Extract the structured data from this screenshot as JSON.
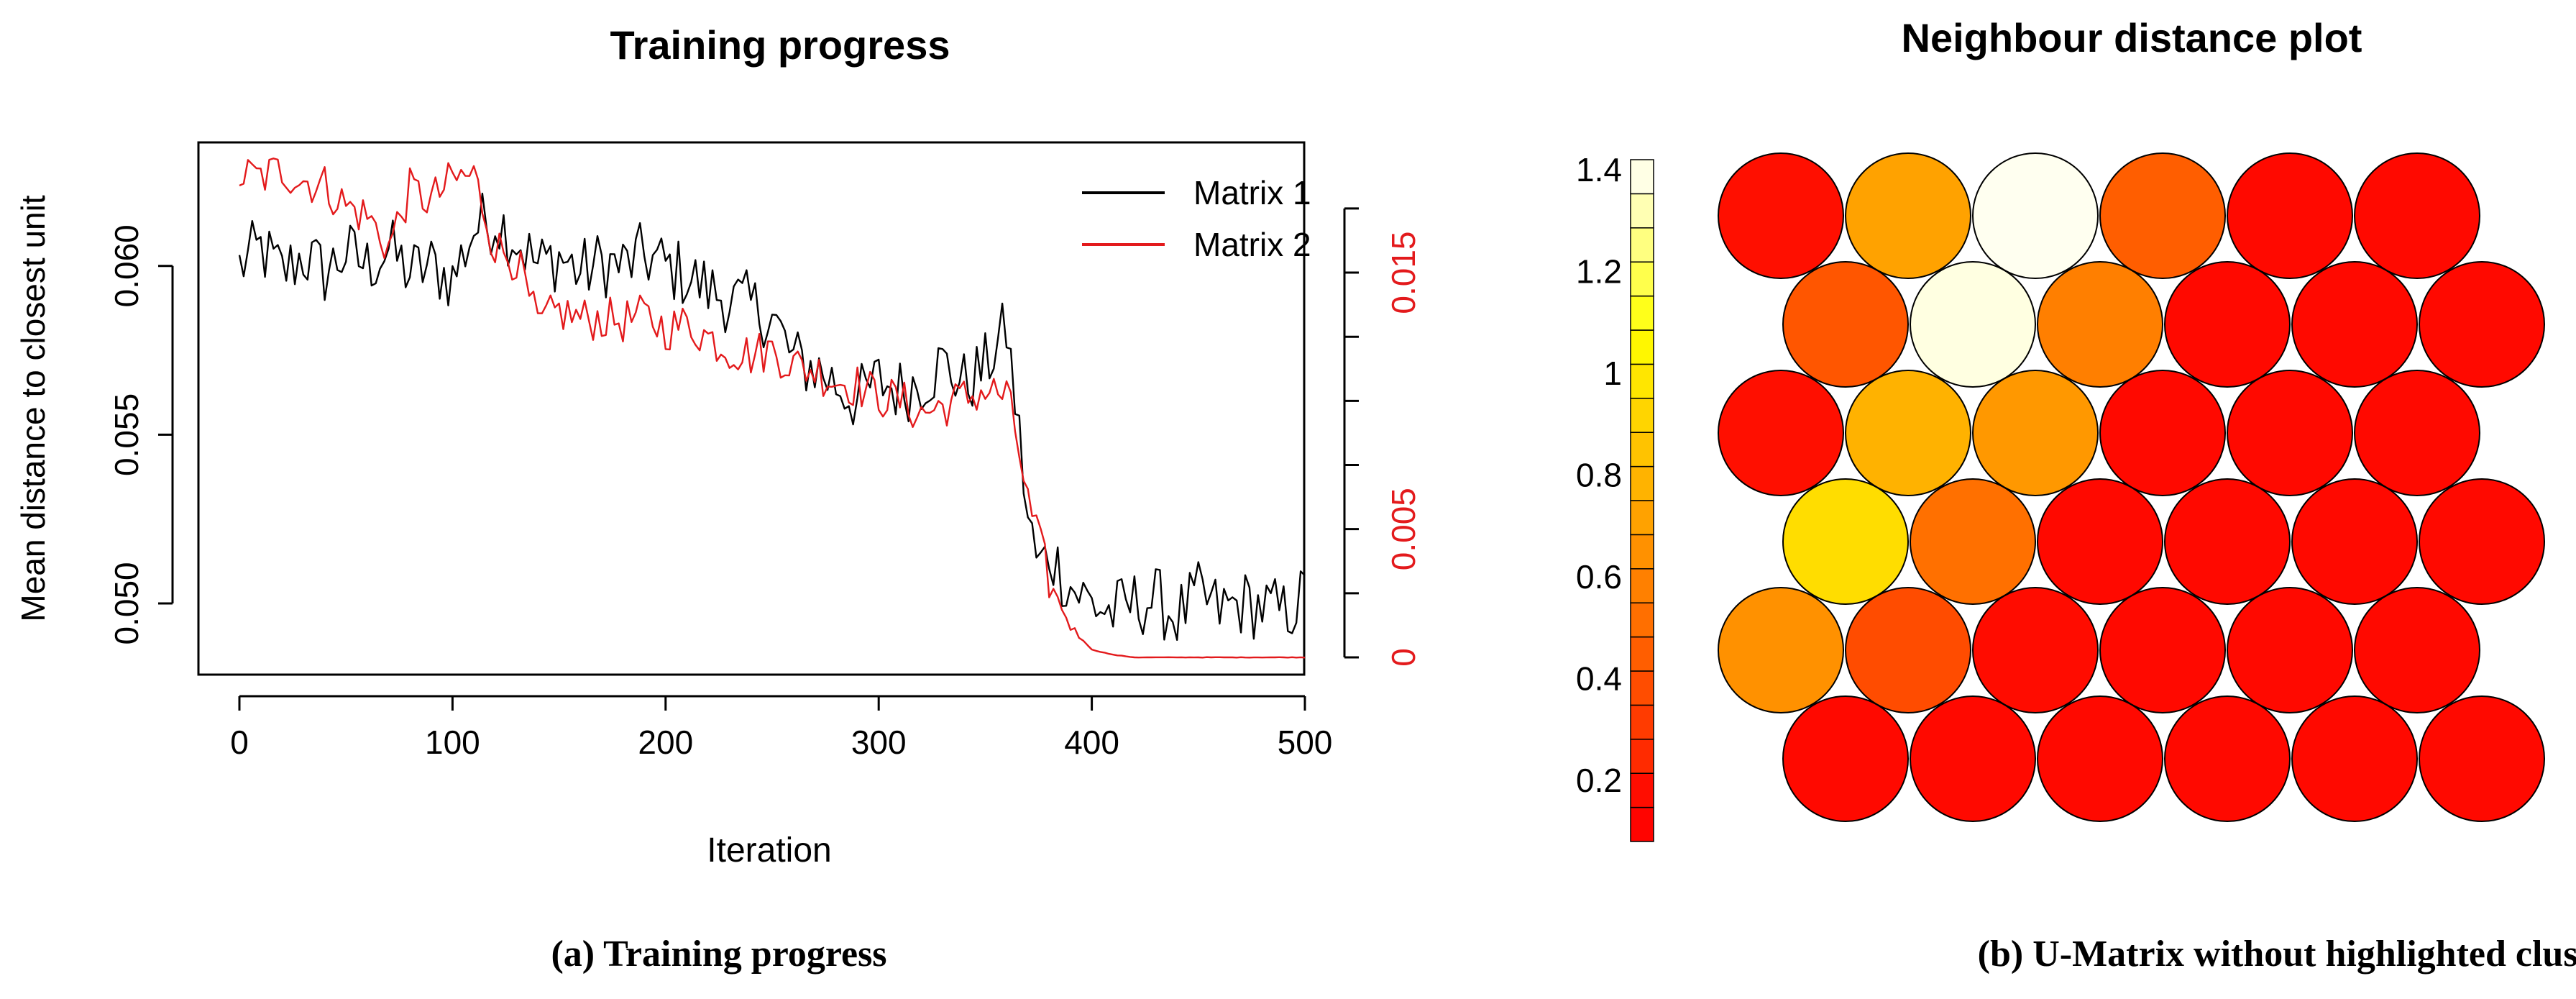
{
  "panels": {
    "a": {
      "caption": "(a) Training progress"
    },
    "b": {
      "caption": "(b) U-Matrix without highlighted clusters"
    }
  },
  "colors": {
    "matrix1": "#000000",
    "matrix2": "#e31a1c",
    "right_axis": "#e31a1c"
  },
  "chart_data": [
    {
      "type": "line",
      "title": "Training progress",
      "xlabel": "Iteration",
      "ylabel": "Mean distance to closest unit",
      "xlim": [
        0,
        500
      ],
      "x_ticks": [
        0,
        100,
        200,
        300,
        400,
        500
      ],
      "ylim": [
        0.0484,
        0.0633
      ],
      "y_ticks": [
        0.05,
        0.055,
        0.06
      ],
      "y_tick_labels": [
        "0.050",
        "0.055",
        "0.060"
      ],
      "y2lim": [
        0,
        0.0196
      ],
      "y2_ticks": [
        0,
        0.0025,
        0.005,
        0.0075,
        0.01,
        0.0125,
        0.015,
        0.0175
      ],
      "y2_tick_labels": [
        "0",
        "",
        "0.005",
        "",
        "",
        "",
        "0.015",
        ""
      ],
      "legend_position": "top-right",
      "series": [
        {
          "name": "Matrix 1",
          "axis": "left",
          "x": [
            0,
            10,
            20,
            30,
            40,
            50,
            60,
            70,
            80,
            90,
            100,
            110,
            120,
            130,
            140,
            150,
            160,
            170,
            180,
            190,
            200,
            210,
            220,
            230,
            240,
            250,
            260,
            270,
            280,
            290,
            300,
            310,
            320,
            330,
            340,
            350,
            355,
            360,
            365,
            370,
            375,
            380,
            390,
            400,
            410,
            420,
            430,
            440,
            450,
            460,
            470,
            480,
            490,
            500
          ],
          "values": [
            0.06,
            0.0605,
            0.0598,
            0.0603,
            0.0598,
            0.0604,
            0.06,
            0.0605,
            0.0598,
            0.06,
            0.0596,
            0.0611,
            0.0614,
            0.0608,
            0.06,
            0.0603,
            0.0598,
            0.0601,
            0.06,
            0.0603,
            0.06,
            0.0597,
            0.0593,
            0.059,
            0.0588,
            0.0585,
            0.0572,
            0.057,
            0.0565,
            0.056,
            0.0566,
            0.0563,
            0.0566,
            0.0571,
            0.0565,
            0.057,
            0.0576,
            0.0581,
            0.0555,
            0.0525,
            0.051,
            0.0515,
            0.0505,
            0.05,
            0.0497,
            0.05,
            0.0501,
            0.0496,
            0.0502,
            0.0498,
            0.05,
            0.0499,
            0.0497,
            0.0502
          ]
        },
        {
          "name": "Matrix 2",
          "axis": "right",
          "x": [
            0,
            10,
            20,
            30,
            40,
            50,
            60,
            70,
            80,
            90,
            100,
            110,
            120,
            130,
            140,
            150,
            160,
            170,
            180,
            190,
            200,
            210,
            220,
            230,
            240,
            250,
            260,
            270,
            280,
            290,
            300,
            310,
            320,
            330,
            340,
            350,
            360,
            365,
            370,
            375,
            380,
            390,
            400,
            410,
            420,
            500
          ],
          "values": [
            0.0188,
            0.0187,
            0.019,
            0.0186,
            0.0184,
            0.0176,
            0.0172,
            0.016,
            0.0182,
            0.0178,
            0.0186,
            0.0188,
            0.016,
            0.0155,
            0.0129,
            0.0135,
            0.0132,
            0.0132,
            0.0131,
            0.0133,
            0.0128,
            0.013,
            0.0125,
            0.012,
            0.0118,
            0.012,
            0.0114,
            0.0112,
            0.0108,
            0.0106,
            0.0102,
            0.01,
            0.0095,
            0.0098,
            0.0101,
            0.0104,
            0.0102,
            0.0085,
            0.006,
            0.0045,
            0.003,
            0.0012,
            0.0003,
            0.0001,
            0.0,
            0.0
          ]
        }
      ]
    },
    {
      "type": "heatmap",
      "subtype": "hexagonal-som-umatrix",
      "title": "Neighbour distance plot",
      "rows": 6,
      "cols": 6,
      "scale_min": 0.08,
      "scale_max": 1.42,
      "scale_ticks": [
        0.2,
        0.4,
        0.6,
        0.8,
        1.0,
        1.2,
        1.4
      ],
      "scale_tick_labels": [
        "0.2",
        "0.4",
        "0.6",
        "0.8",
        "1",
        "1.2",
        "1.4"
      ],
      "row_order": "top-to-bottom",
      "offset_rows": [
        1,
        3,
        5
      ],
      "values": [
        [
          0.2,
          0.72,
          1.4,
          0.45,
          0.15,
          0.15
        ],
        [
          0.42,
          1.38,
          0.58,
          0.15,
          0.15,
          0.15
        ],
        [
          0.2,
          0.78,
          0.68,
          0.15,
          0.15,
          0.15
        ],
        [
          0.95,
          0.52,
          0.15,
          0.15,
          0.15,
          0.15
        ],
        [
          0.65,
          0.38,
          0.18,
          0.15,
          0.15,
          0.15
        ],
        [
          0.15,
          0.15,
          0.15,
          0.15,
          0.15,
          0.15
        ]
      ]
    }
  ]
}
